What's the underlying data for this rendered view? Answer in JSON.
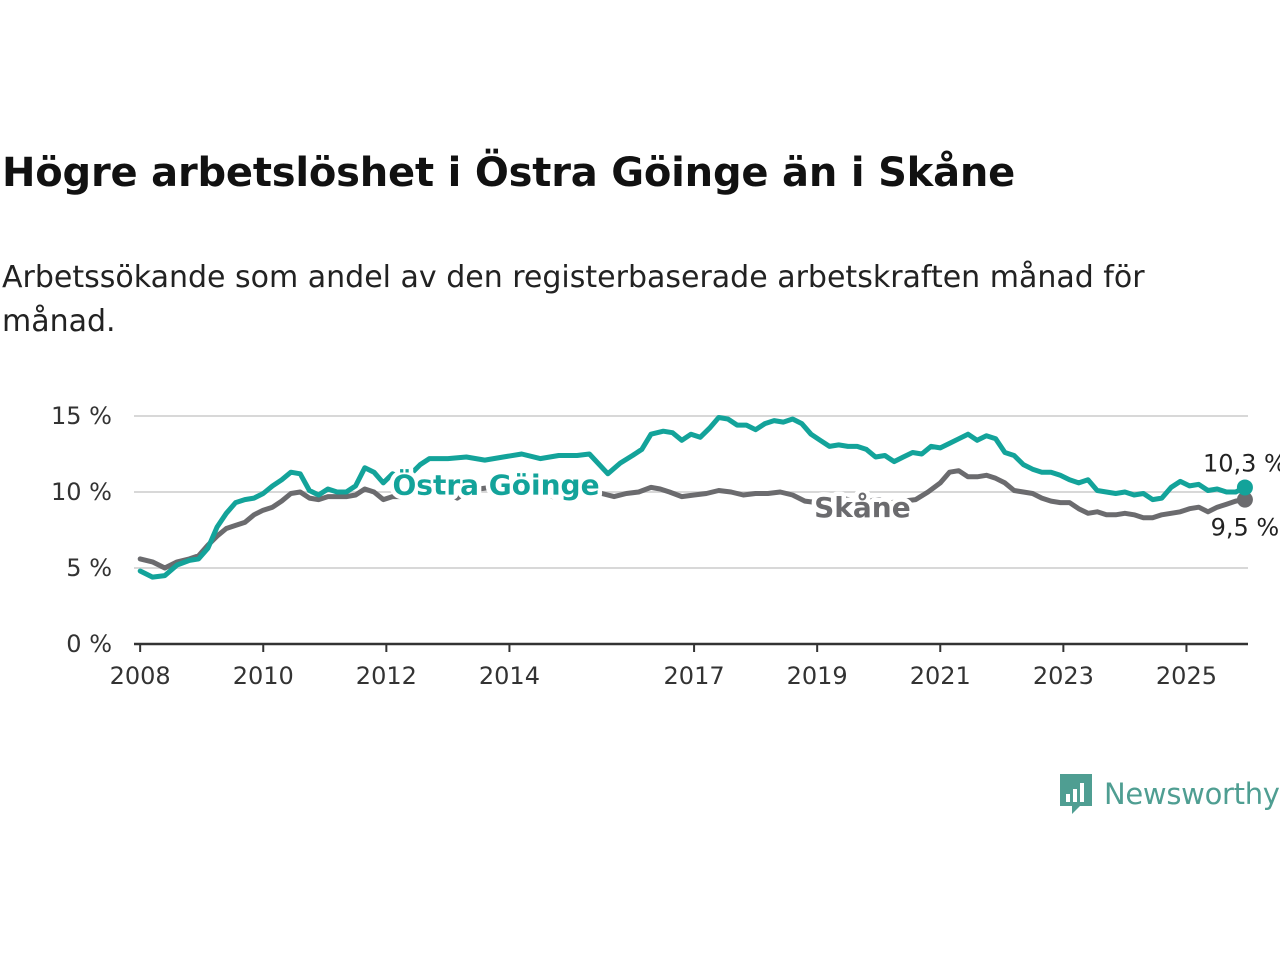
{
  "title": "Högre arbetslöshet i Östra Göinge än i Skåne",
  "subtitle": "Arbetssökande som andel av den registerbaserade arbetskraften månad för månad.",
  "brand": {
    "name": "Newsworthy",
    "icon": "newsworthy-logo-icon",
    "color": "#4f9e92"
  },
  "chart_data": {
    "type": "line",
    "y_unit": "%",
    "ylim": [
      0,
      15
    ],
    "yticks": [
      0,
      5,
      10,
      15
    ],
    "ytick_labels": [
      "0 %",
      "5 %",
      "10 %",
      "15 %"
    ],
    "xlim": [
      2007.9,
      2026.0
    ],
    "xticks": [
      2008,
      2010,
      2012,
      2014,
      2017,
      2019,
      2021,
      2023,
      2025
    ],
    "xtick_labels": [
      "2008",
      "2010",
      "2012",
      "2014",
      "2017",
      "2019",
      "2021",
      "2023",
      "2025"
    ],
    "grid": "horizontal",
    "series": [
      {
        "name": "Östra Göinge",
        "color": "#13a39a",
        "end_label": "10,3 %",
        "points": [
          [
            2008.0,
            4.8
          ],
          [
            2008.2,
            4.4
          ],
          [
            2008.4,
            4.5
          ],
          [
            2008.6,
            5.2
          ],
          [
            2008.8,
            5.5
          ],
          [
            2008.95,
            5.6
          ],
          [
            2009.1,
            6.3
          ],
          [
            2009.25,
            7.7
          ],
          [
            2009.4,
            8.6
          ],
          [
            2009.55,
            9.3
          ],
          [
            2009.7,
            9.5
          ],
          [
            2009.85,
            9.6
          ],
          [
            2010.0,
            9.9
          ],
          [
            2010.15,
            10.4
          ],
          [
            2010.3,
            10.8
          ],
          [
            2010.45,
            11.3
          ],
          [
            2010.6,
            11.2
          ],
          [
            2010.75,
            10.1
          ],
          [
            2010.9,
            9.8
          ],
          [
            2011.05,
            10.2
          ],
          [
            2011.2,
            10.0
          ],
          [
            2011.35,
            10.0
          ],
          [
            2011.5,
            10.4
          ],
          [
            2011.65,
            11.6
          ],
          [
            2011.8,
            11.3
          ],
          [
            2011.95,
            10.6
          ],
          [
            2012.1,
            11.2
          ],
          [
            2012.25,
            10.9
          ],
          [
            2012.4,
            11.2
          ],
          [
            2012.55,
            11.8
          ],
          [
            2012.7,
            12.2
          ],
          [
            2013.0,
            12.2
          ],
          [
            2013.3,
            12.3
          ],
          [
            2013.6,
            12.1
          ],
          [
            2013.9,
            12.3
          ],
          [
            2014.2,
            12.5
          ],
          [
            2014.5,
            12.2
          ],
          [
            2014.8,
            12.4
          ],
          [
            2015.1,
            12.4
          ],
          [
            2015.3,
            12.5
          ],
          [
            2015.6,
            11.2
          ],
          [
            2015.8,
            11.9
          ],
          [
            2016.0,
            12.4
          ],
          [
            2016.15,
            12.8
          ],
          [
            2016.3,
            13.8
          ],
          [
            2016.5,
            14.0
          ],
          [
            2016.65,
            13.9
          ],
          [
            2016.8,
            13.4
          ],
          [
            2016.95,
            13.8
          ],
          [
            2017.1,
            13.6
          ],
          [
            2017.25,
            14.2
          ],
          [
            2017.4,
            14.9
          ],
          [
            2017.55,
            14.8
          ],
          [
            2017.7,
            14.4
          ],
          [
            2017.85,
            14.4
          ],
          [
            2018.0,
            14.1
          ],
          [
            2018.15,
            14.5
          ],
          [
            2018.3,
            14.7
          ],
          [
            2018.45,
            14.6
          ],
          [
            2018.6,
            14.8
          ],
          [
            2018.75,
            14.5
          ],
          [
            2018.9,
            13.8
          ],
          [
            2019.05,
            13.4
          ],
          [
            2019.2,
            13.0
          ],
          [
            2019.35,
            13.1
          ],
          [
            2019.5,
            13.0
          ],
          [
            2019.65,
            13.0
          ],
          [
            2019.8,
            12.8
          ],
          [
            2019.95,
            12.3
          ],
          [
            2020.1,
            12.4
          ],
          [
            2020.25,
            12.0
          ],
          [
            2020.4,
            12.3
          ],
          [
            2020.55,
            12.6
          ],
          [
            2020.7,
            12.5
          ],
          [
            2020.85,
            13.0
          ],
          [
            2021.0,
            12.9
          ],
          [
            2021.15,
            13.2
          ],
          [
            2021.3,
            13.5
          ],
          [
            2021.45,
            13.8
          ],
          [
            2021.6,
            13.4
          ],
          [
            2021.75,
            13.7
          ],
          [
            2021.9,
            13.5
          ],
          [
            2022.05,
            12.6
          ],
          [
            2022.2,
            12.4
          ],
          [
            2022.35,
            11.8
          ],
          [
            2022.5,
            11.5
          ],
          [
            2022.65,
            11.3
          ],
          [
            2022.8,
            11.3
          ],
          [
            2022.95,
            11.1
          ],
          [
            2023.1,
            10.8
          ],
          [
            2023.25,
            10.6
          ],
          [
            2023.4,
            10.8
          ],
          [
            2023.55,
            10.1
          ],
          [
            2023.7,
            10.0
          ],
          [
            2023.85,
            9.9
          ],
          [
            2024.0,
            10.0
          ],
          [
            2024.15,
            9.8
          ],
          [
            2024.3,
            9.9
          ],
          [
            2024.45,
            9.5
          ],
          [
            2024.6,
            9.6
          ],
          [
            2024.75,
            10.3
          ],
          [
            2024.9,
            10.7
          ],
          [
            2025.05,
            10.4
          ],
          [
            2025.2,
            10.5
          ],
          [
            2025.35,
            10.1
          ],
          [
            2025.5,
            10.2
          ],
          [
            2025.65,
            10.0
          ],
          [
            2025.8,
            10.0
          ],
          [
            2025.95,
            10.3
          ]
        ]
      },
      {
        "name": "Skåne",
        "color": "#6b6b6e",
        "end_label": "9,5 %",
        "points": [
          [
            2008.0,
            5.6
          ],
          [
            2008.2,
            5.4
          ],
          [
            2008.4,
            5.0
          ],
          [
            2008.6,
            5.4
          ],
          [
            2008.8,
            5.6
          ],
          [
            2008.95,
            5.8
          ],
          [
            2009.1,
            6.5
          ],
          [
            2009.25,
            7.1
          ],
          [
            2009.4,
            7.6
          ],
          [
            2009.55,
            7.8
          ],
          [
            2009.7,
            8.0
          ],
          [
            2009.85,
            8.5
          ],
          [
            2010.0,
            8.8
          ],
          [
            2010.15,
            9.0
          ],
          [
            2010.3,
            9.4
          ],
          [
            2010.45,
            9.9
          ],
          [
            2010.6,
            10.0
          ],
          [
            2010.75,
            9.6
          ],
          [
            2010.9,
            9.5
          ],
          [
            2011.05,
            9.7
          ],
          [
            2011.2,
            9.7
          ],
          [
            2011.35,
            9.7
          ],
          [
            2011.5,
            9.8
          ],
          [
            2011.65,
            10.2
          ],
          [
            2011.8,
            10.0
          ],
          [
            2011.95,
            9.5
          ],
          [
            2012.1,
            9.7
          ],
          [
            2012.25,
            9.7
          ],
          [
            2012.4,
            9.8
          ],
          [
            2012.55,
            10.0
          ],
          [
            2012.7,
            10.3
          ],
          [
            2012.85,
            10.2
          ],
          [
            2013.0,
            10.0
          ],
          [
            2013.15,
            9.6
          ],
          [
            2013.3,
            10.0
          ],
          [
            2013.5,
            10.2
          ],
          [
            2013.7,
            10.3
          ],
          [
            2013.9,
            10.0
          ],
          [
            2014.1,
            10.3
          ],
          [
            2014.3,
            10.5
          ],
          [
            2014.5,
            10.2
          ],
          [
            2014.7,
            9.7
          ],
          [
            2014.9,
            10.0
          ],
          [
            2015.1,
            10.1
          ],
          [
            2015.3,
            10.2
          ],
          [
            2015.5,
            9.9
          ],
          [
            2015.7,
            9.7
          ],
          [
            2015.9,
            9.9
          ],
          [
            2016.1,
            10.0
          ],
          [
            2016.3,
            10.3
          ],
          [
            2016.45,
            10.2
          ],
          [
            2016.6,
            10.0
          ],
          [
            2016.8,
            9.7
          ],
          [
            2017.0,
            9.8
          ],
          [
            2017.2,
            9.9
          ],
          [
            2017.4,
            10.1
          ],
          [
            2017.6,
            10.0
          ],
          [
            2017.8,
            9.8
          ],
          [
            2018.0,
            9.9
          ],
          [
            2018.2,
            9.9
          ],
          [
            2018.4,
            10.0
          ],
          [
            2018.6,
            9.8
          ],
          [
            2018.8,
            9.4
          ],
          [
            2019.0,
            9.3
          ],
          [
            2019.2,
            9.5
          ],
          [
            2019.4,
            9.6
          ],
          [
            2019.6,
            9.4
          ],
          [
            2019.8,
            9.4
          ],
          [
            2020.0,
            9.5
          ],
          [
            2020.2,
            9.3
          ],
          [
            2020.4,
            9.4
          ],
          [
            2020.6,
            9.5
          ],
          [
            2020.8,
            10.0
          ],
          [
            2021.0,
            10.6
          ],
          [
            2021.15,
            11.3
          ],
          [
            2021.3,
            11.4
          ],
          [
            2021.45,
            11.0
          ],
          [
            2021.6,
            11.0
          ],
          [
            2021.75,
            11.1
          ],
          [
            2021.9,
            10.9
          ],
          [
            2022.05,
            10.6
          ],
          [
            2022.2,
            10.1
          ],
          [
            2022.35,
            10.0
          ],
          [
            2022.5,
            9.9
          ],
          [
            2022.65,
            9.6
          ],
          [
            2022.8,
            9.4
          ],
          [
            2022.95,
            9.3
          ],
          [
            2023.1,
            9.3
          ],
          [
            2023.25,
            8.9
          ],
          [
            2023.4,
            8.6
          ],
          [
            2023.55,
            8.7
          ],
          [
            2023.7,
            8.5
          ],
          [
            2023.85,
            8.5
          ],
          [
            2024.0,
            8.6
          ],
          [
            2024.15,
            8.5
          ],
          [
            2024.3,
            8.3
          ],
          [
            2024.45,
            8.3
          ],
          [
            2024.6,
            8.5
          ],
          [
            2024.75,
            8.6
          ],
          [
            2024.9,
            8.7
          ],
          [
            2025.05,
            8.9
          ],
          [
            2025.2,
            9.0
          ],
          [
            2025.35,
            8.7
          ],
          [
            2025.5,
            9.0
          ],
          [
            2025.65,
            9.2
          ],
          [
            2025.8,
            9.4
          ],
          [
            2025.95,
            9.5
          ]
        ]
      }
    ]
  }
}
